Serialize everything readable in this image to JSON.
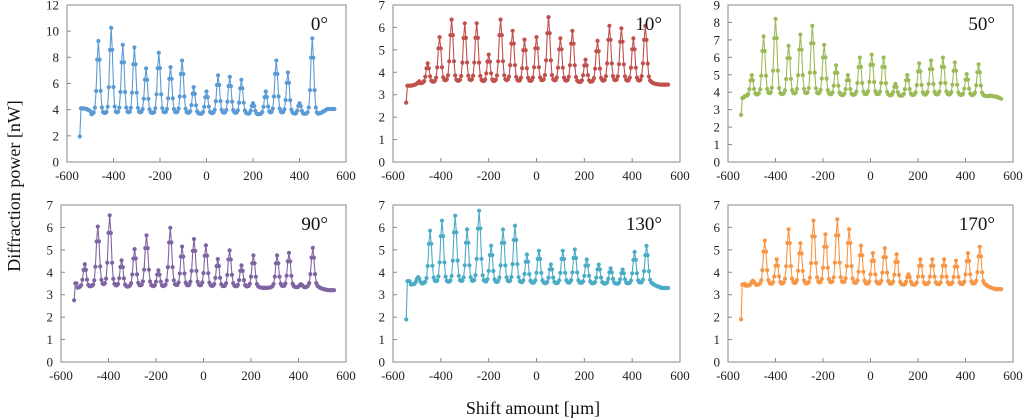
{
  "chart_data": {
    "type": "line",
    "figure": {
      "ylabel": "Diffraction power [nW]",
      "xlabel": "Shift amount [µm]"
    },
    "panels": [
      {
        "label": "0°",
        "color": "#5b9bd5",
        "xlim": [
          -600,
          600
        ],
        "ylim": [
          0,
          12
        ],
        "xticks": [
          -600,
          -400,
          -200,
          0,
          200,
          400,
          600
        ],
        "yticks": [
          0,
          2,
          4,
          6,
          8,
          10,
          12
        ],
        "start": {
          "x": -545,
          "y": 1.95
        },
        "baseline_left": 4.1,
        "baseline_right": 4.05,
        "valley": 3.6,
        "peaks": [
          [
            -465,
            8.9
          ],
          [
            -410,
            9.9
          ],
          [
            -360,
            8.6
          ],
          [
            -310,
            8.4
          ],
          [
            -260,
            6.8
          ],
          [
            -205,
            8.0
          ],
          [
            -155,
            6.9
          ],
          [
            -105,
            7.4
          ],
          [
            -55,
            5.5
          ],
          [
            0,
            5.2
          ],
          [
            50,
            6.3
          ],
          [
            100,
            6.2
          ],
          [
            150,
            6.0
          ],
          [
            200,
            4.4
          ],
          [
            255,
            5.2
          ],
          [
            300,
            7.4
          ],
          [
            350,
            6.5
          ],
          [
            400,
            4.4
          ],
          [
            455,
            9.1
          ]
        ]
      },
      {
        "label": "10°",
        "color": "#c0504d",
        "xlim": [
          -600,
          600
        ],
        "ylim": [
          0,
          7
        ],
        "xticks": [
          -600,
          -400,
          -200,
          0,
          200,
          400,
          600
        ],
        "yticks": [
          0,
          1,
          2,
          3,
          4,
          5,
          6,
          7
        ],
        "start": {
          "x": -545,
          "y": 2.65
        },
        "baseline_left": 3.4,
        "baseline_right": 3.45,
        "valley": 3.5,
        "peaks": [
          [
            -455,
            4.3
          ],
          [
            -405,
            5.35
          ],
          [
            -355,
            6.05
          ],
          [
            -300,
            5.9
          ],
          [
            -250,
            5.9
          ],
          [
            -200,
            4.65
          ],
          [
            -150,
            6.05
          ],
          [
            -100,
            5.6
          ],
          [
            -50,
            5.25
          ],
          [
            0,
            5.35
          ],
          [
            50,
            6.15
          ],
          [
            100,
            5.3
          ],
          [
            150,
            5.6
          ],
          [
            205,
            4.45
          ],
          [
            255,
            5.2
          ],
          [
            305,
            5.8
          ],
          [
            355,
            5.7
          ],
          [
            405,
            5.3
          ],
          [
            455,
            5.8
          ]
        ]
      },
      {
        "label": "50°",
        "color": "#9bbb59",
        "xlim": [
          -600,
          600
        ],
        "ylim": [
          0,
          9
        ],
        "xticks": [
          -600,
          -400,
          -200,
          0,
          200,
          400,
          600
        ],
        "yticks": [
          0,
          1,
          2,
          3,
          4,
          5,
          6,
          7,
          8,
          9
        ],
        "start": {
          "x": -545,
          "y": 2.7
        },
        "baseline_left": 3.65,
        "baseline_right": 3.5,
        "valley": 3.75,
        "peaks": [
          [
            -500,
            4.85
          ],
          [
            -450,
            6.85
          ],
          [
            -400,
            7.85
          ],
          [
            -345,
            6.35
          ],
          [
            -295,
            6.95
          ],
          [
            -245,
            7.45
          ],
          [
            -195,
            6.4
          ],
          [
            -145,
            5.35
          ],
          [
            -95,
            4.85
          ],
          [
            -45,
            5.75
          ],
          [
            5,
            5.9
          ],
          [
            55,
            5.75
          ],
          [
            105,
            4.4
          ],
          [
            155,
            4.85
          ],
          [
            205,
            5.45
          ],
          [
            255,
            5.6
          ],
          [
            305,
            5.75
          ],
          [
            355,
            5.5
          ],
          [
            405,
            4.9
          ],
          [
            455,
            5.4
          ],
          [
            505,
            3.8
          ]
        ]
      },
      {
        "label": "90°",
        "color": "#8064a2",
        "xlim": [
          -600,
          600
        ],
        "ylim": [
          0,
          7
        ],
        "xticks": [
          -600,
          -400,
          -200,
          0,
          200,
          400,
          600
        ],
        "yticks": [
          0,
          1,
          2,
          3,
          4,
          5,
          6,
          7
        ],
        "start": {
          "x": -545,
          "y": 2.75
        },
        "baseline_left": 3.5,
        "baseline_right": 3.2,
        "valley": 3.3,
        "peaks": [
          [
            -500,
            4.25
          ],
          [
            -445,
            5.75
          ],
          [
            -395,
            6.2
          ],
          [
            -345,
            4.4
          ],
          [
            -290,
            4.85
          ],
          [
            -240,
            5.4
          ],
          [
            -190,
            4.0
          ],
          [
            -140,
            5.7
          ],
          [
            -90,
            4.95
          ],
          [
            -40,
            5.25
          ],
          [
            10,
            5.0
          ],
          [
            60,
            4.45
          ],
          [
            110,
            4.8
          ],
          [
            160,
            4.2
          ],
          [
            210,
            4.6
          ],
          [
            260,
            3.3
          ],
          [
            310,
            4.6
          ],
          [
            360,
            4.7
          ],
          [
            410,
            3.45
          ],
          [
            460,
            4.9
          ]
        ]
      },
      {
        "label": "130°",
        "color": "#4bacc6",
        "xlim": [
          -600,
          600
        ],
        "ylim": [
          0,
          7
        ],
        "xticks": [
          -600,
          -400,
          -200,
          0,
          200,
          400,
          600
        ],
        "yticks": [
          0,
          1,
          2,
          3,
          4,
          5,
          6,
          7
        ],
        "start": {
          "x": -545,
          "y": 1.9
        },
        "baseline_left": 3.6,
        "baseline_right": 3.3,
        "valley": 3.45,
        "peaks": [
          [
            -495,
            3.75
          ],
          [
            -445,
            5.6
          ],
          [
            -395,
            6.0
          ],
          [
            -340,
            6.2
          ],
          [
            -290,
            5.65
          ],
          [
            -240,
            6.4
          ],
          [
            -190,
            5.0
          ],
          [
            -140,
            5.65
          ],
          [
            -90,
            5.8
          ],
          [
            -40,
            4.65
          ],
          [
            10,
            4.8
          ],
          [
            60,
            4.25
          ],
          [
            110,
            4.8
          ],
          [
            160,
            4.85
          ],
          [
            210,
            4.45
          ],
          [
            260,
            4.25
          ],
          [
            310,
            4.1
          ],
          [
            360,
            4.05
          ],
          [
            410,
            4.75
          ],
          [
            460,
            5.0
          ]
        ]
      },
      {
        "label": "170°",
        "color": "#f79646",
        "xlim": [
          -600,
          600
        ],
        "ylim": [
          0,
          7
        ],
        "xticks": [
          -600,
          -400,
          -200,
          0,
          200,
          400,
          600
        ],
        "yticks": [
          0,
          1,
          2,
          3,
          4,
          5,
          6,
          7
        ],
        "start": {
          "x": -545,
          "y": 1.9
        },
        "baseline_left": 3.45,
        "baseline_right": 3.25,
        "valley": 3.4,
        "peaks": [
          [
            -495,
            3.6
          ],
          [
            -445,
            5.2
          ],
          [
            -395,
            4.45
          ],
          [
            -345,
            5.65
          ],
          [
            -295,
            5.1
          ],
          [
            -240,
            6.0
          ],
          [
            -190,
            5.45
          ],
          [
            -140,
            6.05
          ],
          [
            -90,
            5.65
          ],
          [
            -40,
            5.0
          ],
          [
            10,
            4.7
          ],
          [
            60,
            4.9
          ],
          [
            110,
            4.65
          ],
          [
            160,
            3.85
          ],
          [
            210,
            4.45
          ],
          [
            260,
            4.45
          ],
          [
            310,
            4.45
          ],
          [
            360,
            4.4
          ],
          [
            410,
            4.7
          ],
          [
            460,
            4.95
          ]
        ]
      }
    ]
  }
}
